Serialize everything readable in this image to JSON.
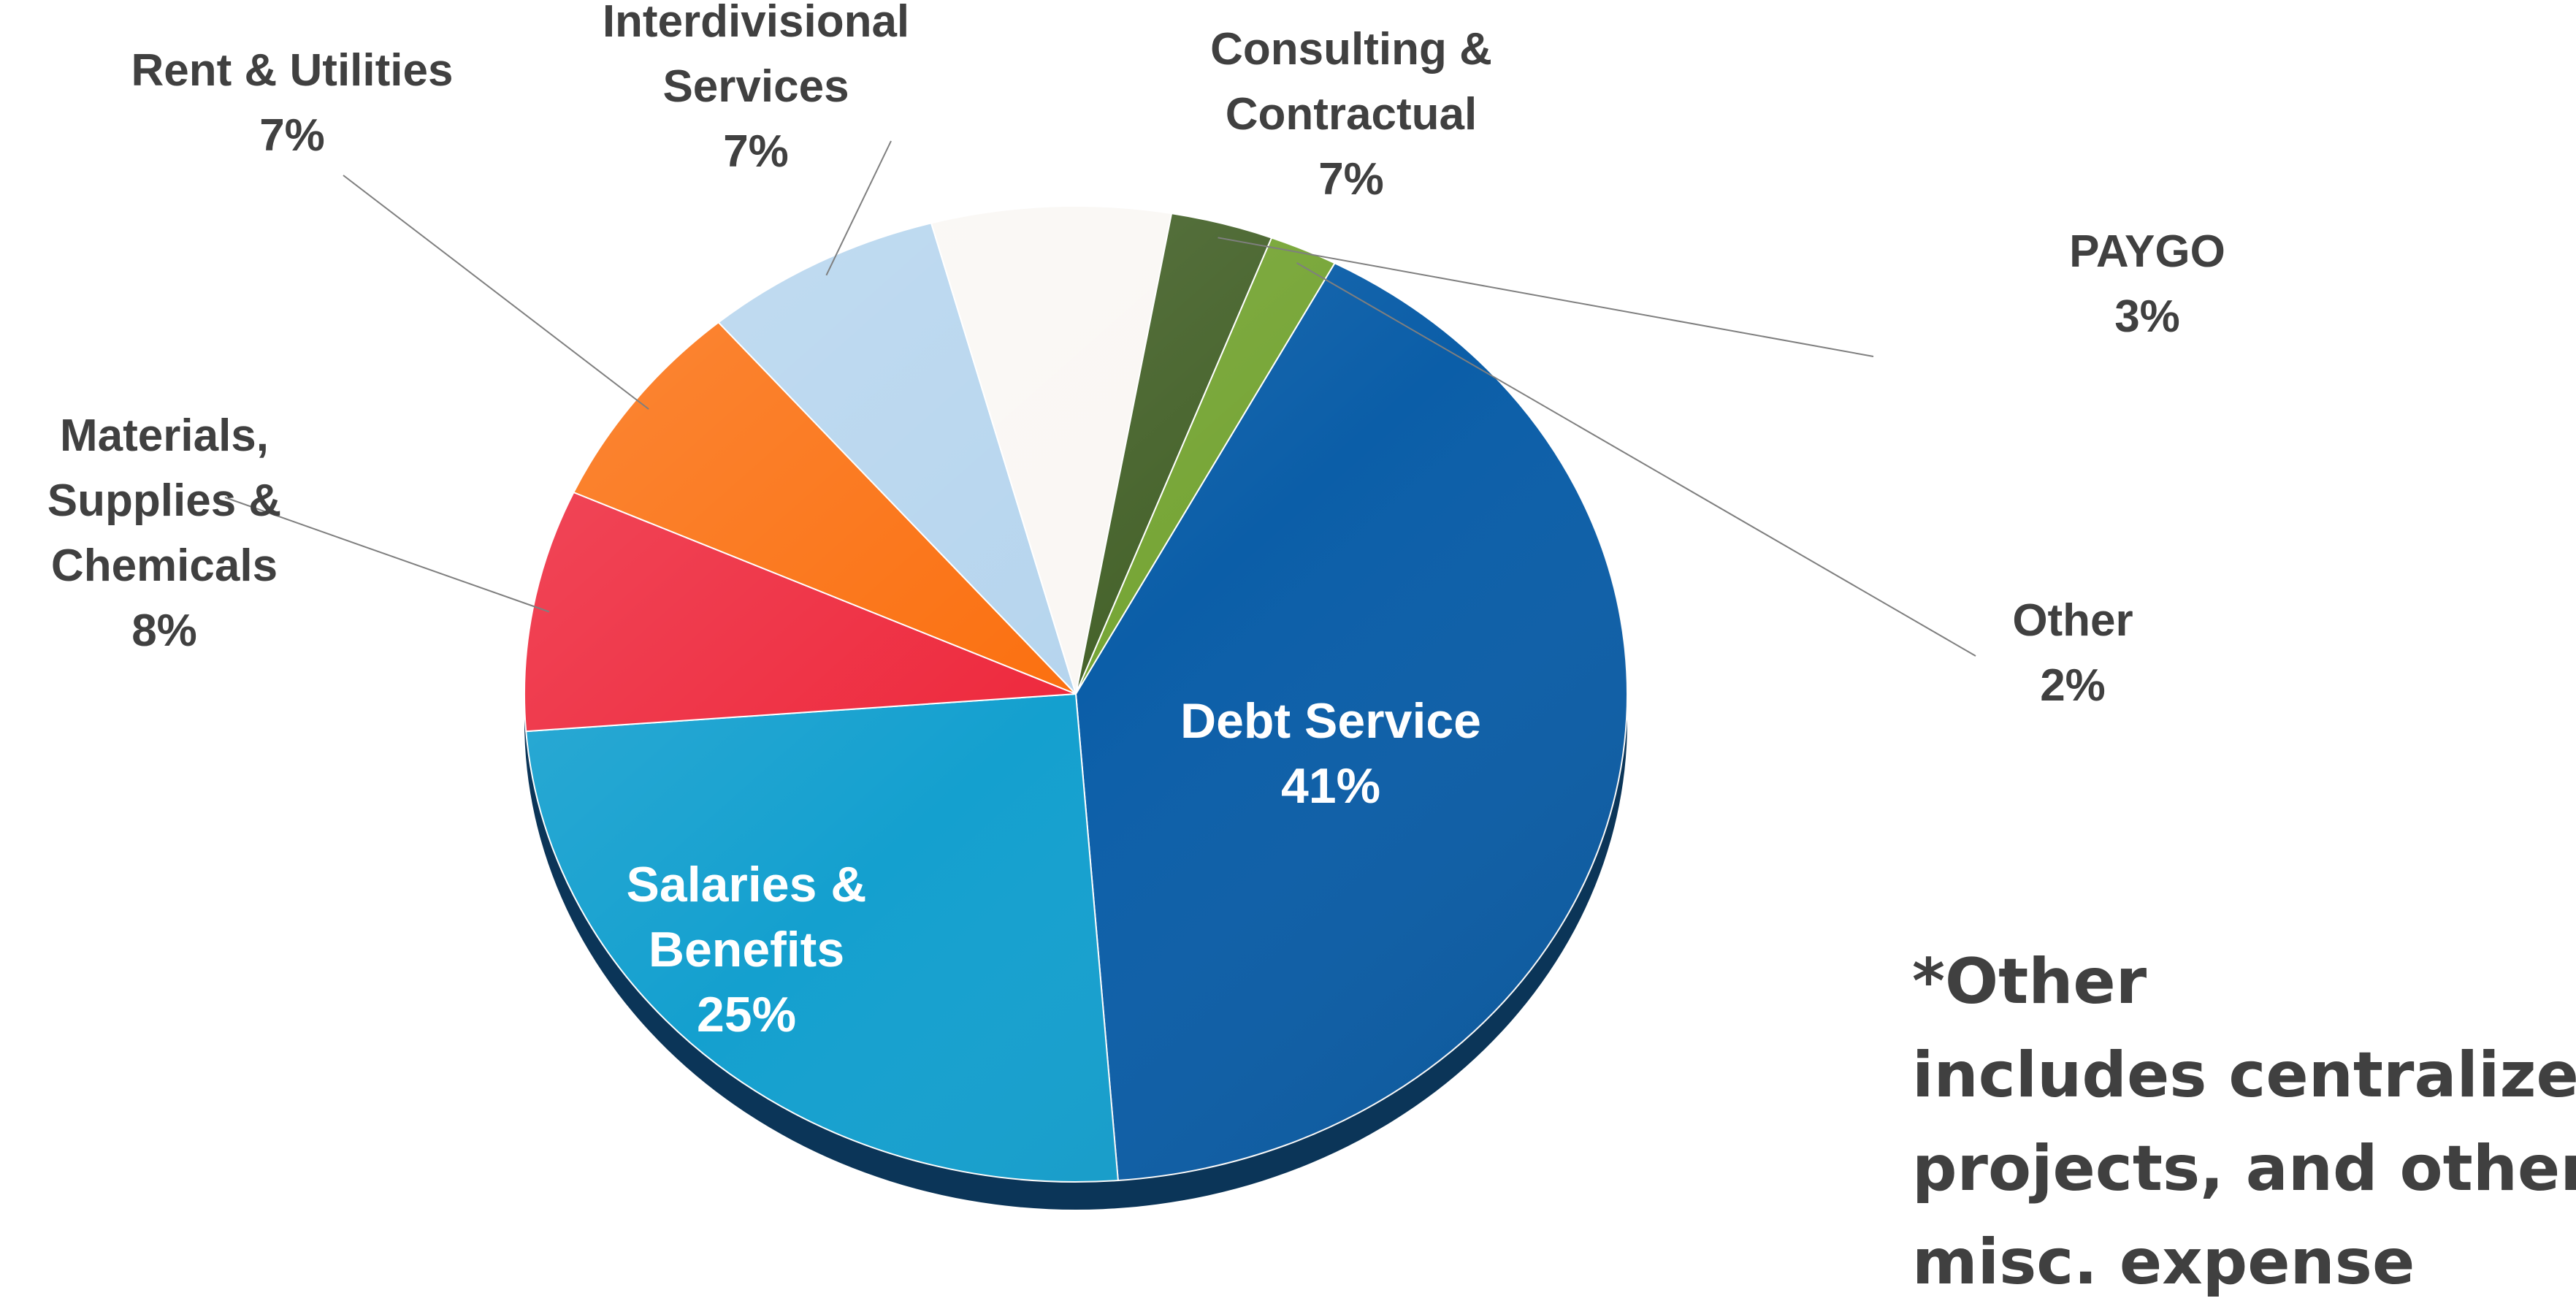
{
  "chart_data": {
    "type": "pie",
    "title": "",
    "slices": [
      {
        "label_lines": [
          "Debt Service"
        ],
        "value_label": "41%",
        "value": 41,
        "color": "#0b5ea8"
      },
      {
        "label_lines": [
          "Salaries &",
          "Benefits"
        ],
        "value_label": "25%",
        "value": 25,
        "color": "#14a0cf"
      },
      {
        "label_lines": [
          "Materials,",
          "Supplies &",
          "Chemicals"
        ],
        "value_label": "8%",
        "value": 8,
        "color": "#ee2a3e"
      },
      {
        "label_lines": [
          "Rent & Utilities"
        ],
        "value_label": "7%",
        "value": 7,
        "color": "#fb7010"
      },
      {
        "label_lines": [
          "Interdivisional",
          "Services"
        ],
        "value_label": "7%",
        "value": 7,
        "color": "#b6d5ee"
      },
      {
        "label_lines": [
          "Consulting &",
          "Contractual"
        ],
        "value_label": "7%",
        "value": 7,
        "color": "#faf7f4"
      },
      {
        "label_lines": [
          "PAYGO"
        ],
        "value_label": "3%",
        "value": 3,
        "color": "#46632b"
      },
      {
        "label_lines": [
          "Other"
        ],
        "value_label": "2%",
        "value": 2,
        "color": "#76a535"
      }
    ]
  },
  "footnote": {
    "lines": [
      "*Other",
      "includes  centralized",
      "projects, and other",
      "misc. expense"
    ]
  }
}
